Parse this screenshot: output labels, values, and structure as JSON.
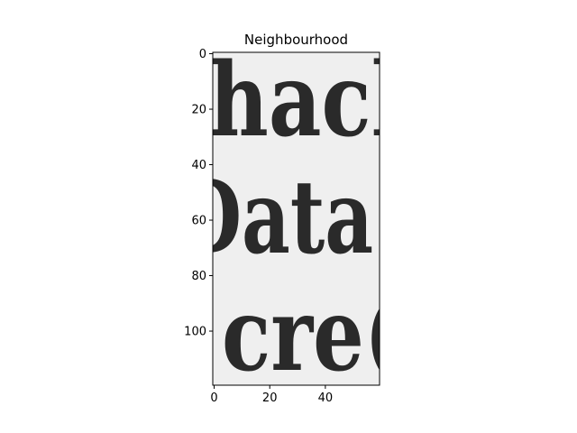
{
  "chart_data": {
    "type": "heatmap",
    "title": "Neighbourhood",
    "xlabel": "",
    "ylabel": "",
    "xlim": [
      -0.5,
      59.5
    ],
    "ylim": [
      119.5,
      -0.5
    ],
    "x_ticks": [
      0,
      20,
      40
    ],
    "y_ticks": [
      0,
      20,
      40,
      60,
      80,
      100
    ],
    "grid": false,
    "colormap": "gray",
    "image_content": {
      "text_lines": [
        "hacl",
        "Data",
        "cre("
      ]
    }
  },
  "colors": {
    "background": "#ffffff",
    "paper": "#efefef",
    "ink": "#2a2a2a",
    "axis": "#000000"
  }
}
